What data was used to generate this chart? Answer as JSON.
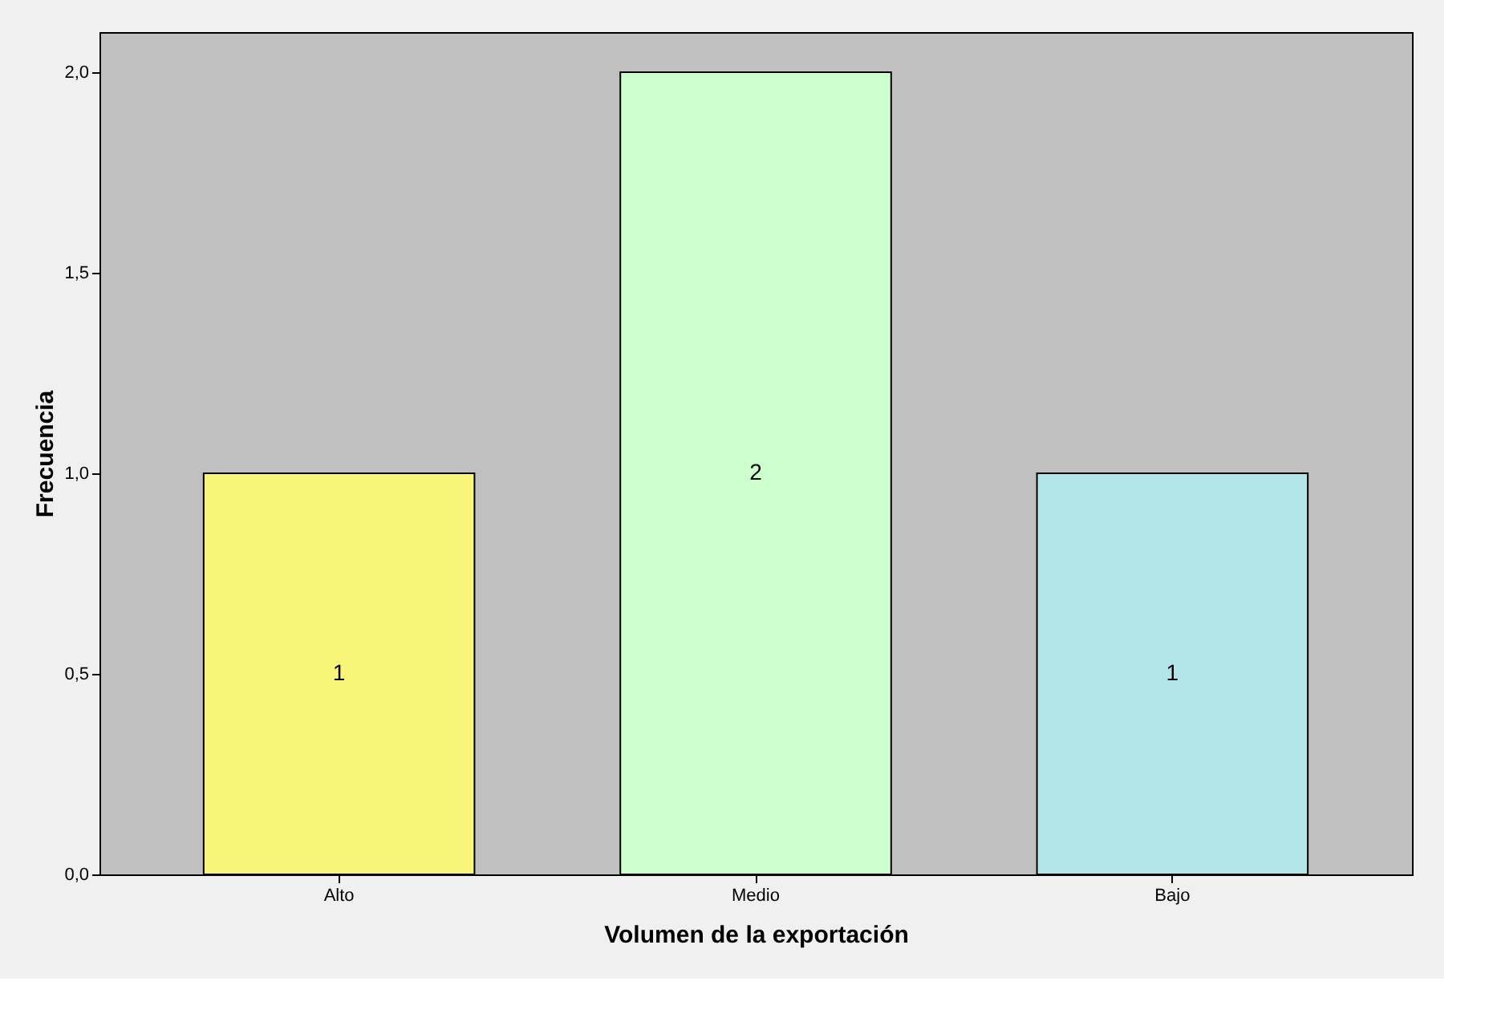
{
  "chart_data": {
    "type": "bar",
    "xlabel": "Volumen de la exportación",
    "ylabel": "Frecuencia",
    "categories": [
      "Alto",
      "Medio",
      "Bajo"
    ],
    "values": [
      1,
      2,
      1
    ],
    "colors": [
      "#f8f578",
      "#ccffcc",
      "#b3e6e8"
    ],
    "ylim": [
      0,
      2.1
    ],
    "yticks": [
      {
        "value": 0,
        "label": "0,0"
      },
      {
        "value": 0.5,
        "label": "0,5"
      },
      {
        "value": 1,
        "label": "1,0"
      },
      {
        "value": 1.5,
        "label": "1,5"
      },
      {
        "value": 2,
        "label": "2,0"
      }
    ],
    "data_labels": true,
    "grid": false
  }
}
